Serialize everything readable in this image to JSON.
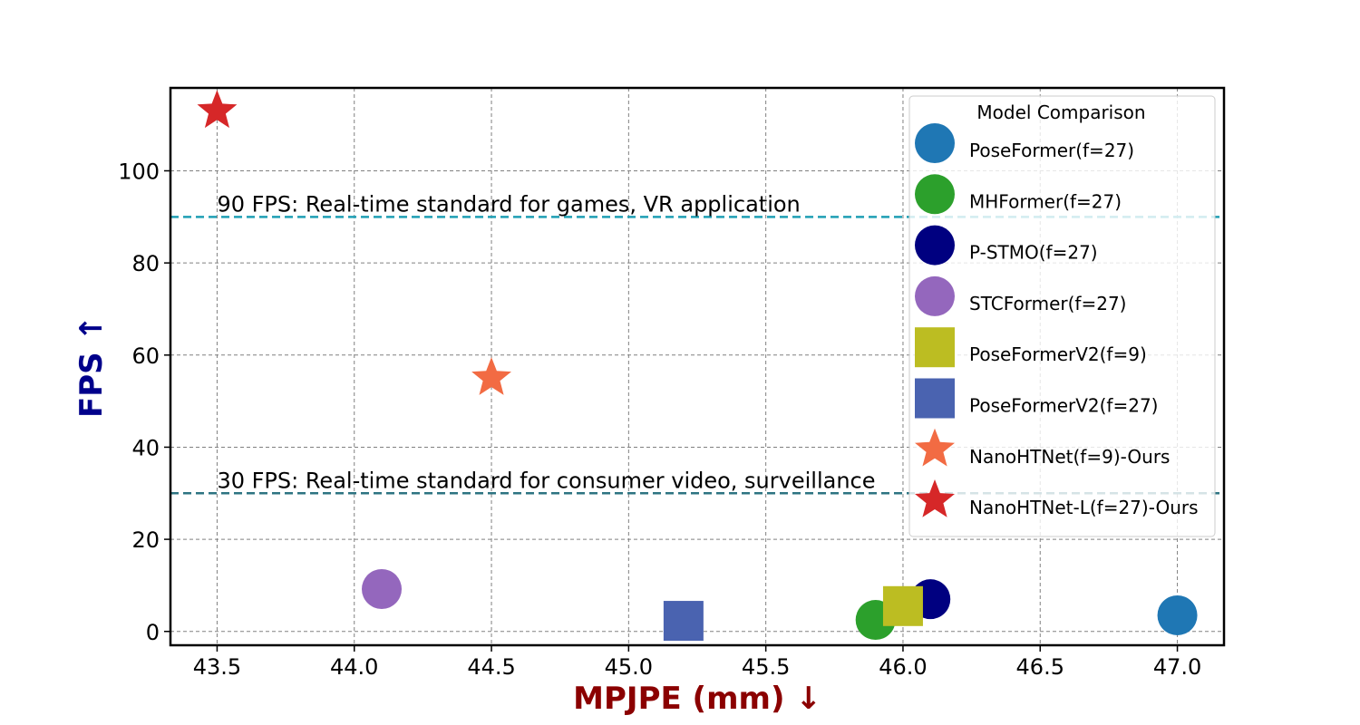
{
  "chart_data": {
    "type": "scatter",
    "xlabel": "MPJPE (mm) ↓",
    "ylabel": "FPS ↑",
    "xlim": [
      43.33,
      47.17
    ],
    "ylim": [
      -3,
      118
    ],
    "xticks": [
      43.5,
      44.0,
      44.5,
      45.0,
      45.5,
      46.0,
      46.5,
      47.0
    ],
    "yticks": [
      0,
      20,
      40,
      60,
      80,
      100
    ],
    "grid": true,
    "colors": {
      "xlabel": "#8b0000",
      "ylabel": "#00008b"
    },
    "reference_lines": [
      {
        "y": 90,
        "label": "90 FPS: Real-time standard for games, VR application",
        "color": "#1f9fb4"
      },
      {
        "y": 30,
        "label": "30 FPS: Real-time standard for consumer video, surveillance",
        "color": "#2e7482"
      }
    ],
    "legend": {
      "title": "Model Comparison",
      "placement": "upper-right"
    },
    "series": [
      {
        "name": "PoseFormer(f=27)",
        "marker": "circle",
        "color": "#1f77b4",
        "x": 47.0,
        "y": 3.5
      },
      {
        "name": "MHFormer(f=27)",
        "marker": "circle",
        "color": "#2ca02c",
        "x": 45.9,
        "y": 2.5
      },
      {
        "name": "P-STMO(f=27)",
        "marker": "circle",
        "color": "#000080",
        "x": 46.1,
        "y": 7.0
      },
      {
        "name": "STCFormer(f=27)",
        "marker": "circle",
        "color": "#9467bd",
        "x": 44.1,
        "y": 9.2
      },
      {
        "name": "PoseFormerV2(f=9)",
        "marker": "square",
        "color": "#bcbd22",
        "x": 46.0,
        "y": 5.5
      },
      {
        "name": "PoseFormerV2(f=27)",
        "marker": "square",
        "color": "#4a63b0",
        "x": 45.2,
        "y": 2.3
      },
      {
        "name": "NanoHTNet(f=9)-Ours",
        "marker": "star",
        "color": "#f26b43",
        "x": 44.5,
        "y": 55.0
      },
      {
        "name": "NanoHTNet-L(f=27)-Ours",
        "marker": "star",
        "color": "#d62728",
        "x": 43.5,
        "y": 113.0
      }
    ]
  }
}
